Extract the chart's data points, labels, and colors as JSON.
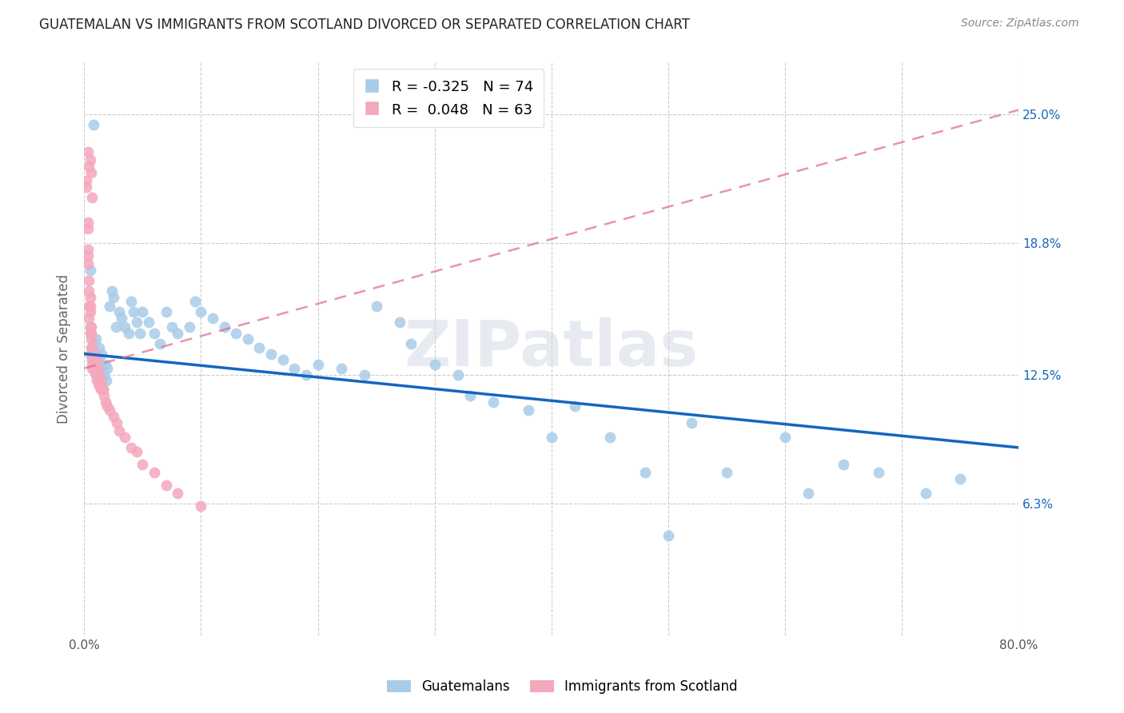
{
  "title": "GUATEMALAN VS IMMIGRANTS FROM SCOTLAND DIVORCED OR SEPARATED CORRELATION CHART",
  "source": "Source: ZipAtlas.com",
  "ylabel": "Divorced or Separated",
  "ytick_labels": [
    "6.3%",
    "12.5%",
    "18.8%",
    "25.0%"
  ],
  "ytick_values": [
    0.063,
    0.125,
    0.188,
    0.25
  ],
  "xmin": 0.0,
  "xmax": 0.8,
  "ymin": 0.0,
  "ymax": 0.275,
  "legend_blue_r": "-0.325",
  "legend_blue_n": "74",
  "legend_pink_r": "0.048",
  "legend_pink_n": "63",
  "blue_color": "#a8cce8",
  "pink_color": "#f4a8bc",
  "blue_line_color": "#1565c0",
  "pink_line_color": "#e07090",
  "watermark": "ZIPatlas",
  "blue_scatter_x": [
    0.005,
    0.007,
    0.008,
    0.009,
    0.01,
    0.01,
    0.011,
    0.012,
    0.013,
    0.013,
    0.014,
    0.015,
    0.016,
    0.017,
    0.018,
    0.019,
    0.02,
    0.022,
    0.024,
    0.025,
    0.027,
    0.03,
    0.032,
    0.035,
    0.038,
    0.04,
    0.042,
    0.045,
    0.048,
    0.05,
    0.055,
    0.06,
    0.065,
    0.07,
    0.075,
    0.08,
    0.09,
    0.095,
    0.1,
    0.11,
    0.12,
    0.13,
    0.14,
    0.15,
    0.16,
    0.17,
    0.18,
    0.19,
    0.2,
    0.22,
    0.24,
    0.25,
    0.27,
    0.28,
    0.3,
    0.32,
    0.33,
    0.35,
    0.38,
    0.4,
    0.42,
    0.45,
    0.48,
    0.5,
    0.52,
    0.55,
    0.6,
    0.62,
    0.65,
    0.68,
    0.72,
    0.75,
    0.005,
    0.008
  ],
  "blue_scatter_y": [
    0.135,
    0.13,
    0.14,
    0.128,
    0.135,
    0.142,
    0.125,
    0.132,
    0.138,
    0.12,
    0.128,
    0.135,
    0.118,
    0.125,
    0.13,
    0.122,
    0.128,
    0.158,
    0.165,
    0.162,
    0.148,
    0.155,
    0.152,
    0.148,
    0.145,
    0.16,
    0.155,
    0.15,
    0.145,
    0.155,
    0.15,
    0.145,
    0.14,
    0.155,
    0.148,
    0.145,
    0.148,
    0.16,
    0.155,
    0.152,
    0.148,
    0.145,
    0.142,
    0.138,
    0.135,
    0.132,
    0.128,
    0.125,
    0.13,
    0.128,
    0.125,
    0.158,
    0.15,
    0.14,
    0.13,
    0.125,
    0.115,
    0.112,
    0.108,
    0.095,
    0.11,
    0.095,
    0.078,
    0.048,
    0.102,
    0.078,
    0.095,
    0.068,
    0.082,
    0.078,
    0.068,
    0.075,
    0.175,
    0.245
  ],
  "pink_scatter_x": [
    0.002,
    0.002,
    0.003,
    0.003,
    0.003,
    0.003,
    0.003,
    0.004,
    0.004,
    0.004,
    0.004,
    0.005,
    0.005,
    0.005,
    0.005,
    0.005,
    0.006,
    0.006,
    0.006,
    0.006,
    0.006,
    0.007,
    0.007,
    0.007,
    0.007,
    0.008,
    0.008,
    0.008,
    0.009,
    0.009,
    0.01,
    0.01,
    0.01,
    0.011,
    0.011,
    0.012,
    0.012,
    0.013,
    0.013,
    0.014,
    0.014,
    0.015,
    0.016,
    0.017,
    0.018,
    0.02,
    0.022,
    0.025,
    0.028,
    0.03,
    0.035,
    0.04,
    0.045,
    0.05,
    0.06,
    0.07,
    0.08,
    0.1,
    0.003,
    0.004,
    0.005,
    0.006,
    0.007
  ],
  "pink_scatter_y": [
    0.215,
    0.218,
    0.198,
    0.195,
    0.185,
    0.182,
    0.178,
    0.17,
    0.165,
    0.158,
    0.152,
    0.162,
    0.158,
    0.155,
    0.148,
    0.145,
    0.148,
    0.145,
    0.142,
    0.138,
    0.135,
    0.138,
    0.135,
    0.132,
    0.128,
    0.135,
    0.132,
    0.128,
    0.132,
    0.128,
    0.132,
    0.128,
    0.125,
    0.128,
    0.122,
    0.128,
    0.122,
    0.125,
    0.12,
    0.122,
    0.118,
    0.12,
    0.118,
    0.115,
    0.112,
    0.11,
    0.108,
    0.105,
    0.102,
    0.098,
    0.095,
    0.09,
    0.088,
    0.082,
    0.078,
    0.072,
    0.068,
    0.062,
    0.232,
    0.225,
    0.228,
    0.222,
    0.21
  ]
}
